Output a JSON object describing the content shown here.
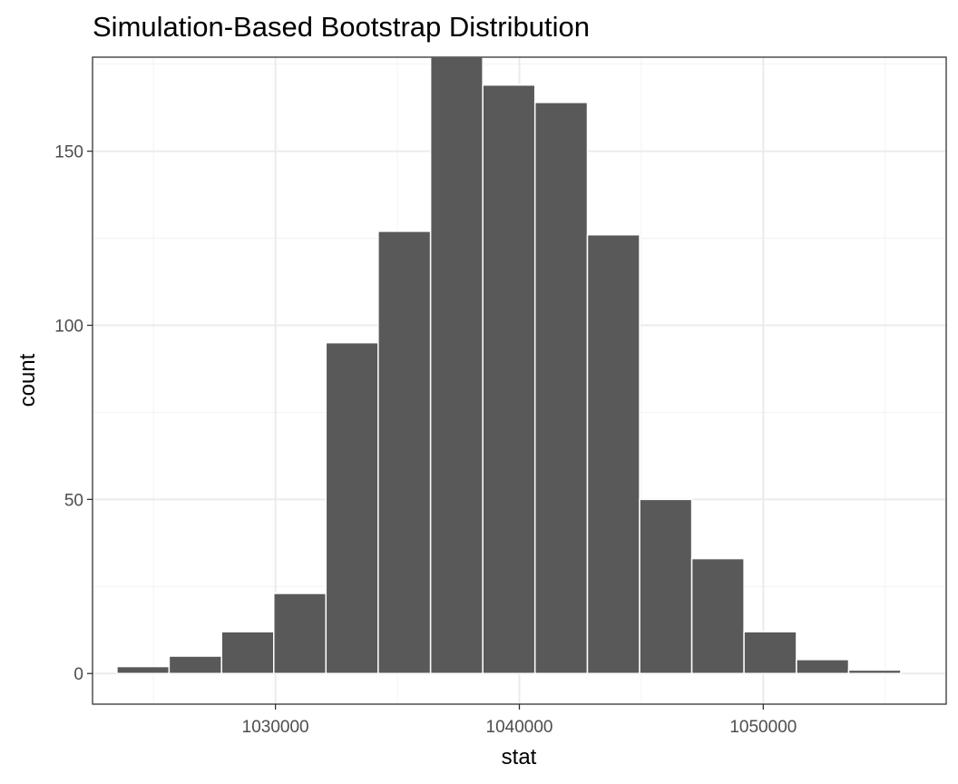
{
  "chart_data": {
    "type": "bar",
    "title": "Simulation-Based Bootstrap Distribution",
    "xlabel": "stat",
    "ylabel": "count",
    "x_ticks": [
      1030000,
      1040000,
      1050000
    ],
    "x_tick_labels": [
      "1030000",
      "1040000",
      "1050000"
    ],
    "y_ticks": [
      0,
      50,
      100,
      150
    ],
    "y_tick_labels": [
      "0",
      "50",
      "100",
      "150"
    ],
    "xlim": [
      1022500,
      1057500
    ],
    "ylim": [
      -8.8,
      177
    ],
    "grid": true,
    "bar_color": "#595959",
    "bar_outline_color": "#ffffff",
    "bins": [
      {
        "x_start": 1023500,
        "x_end": 1025640,
        "value": 2
      },
      {
        "x_start": 1025640,
        "x_end": 1027790,
        "value": 5
      },
      {
        "x_start": 1027790,
        "x_end": 1029930,
        "value": 12
      },
      {
        "x_start": 1029930,
        "x_end": 1032070,
        "value": 23
      },
      {
        "x_start": 1032070,
        "x_end": 1034210,
        "value": 95
      },
      {
        "x_start": 1034210,
        "x_end": 1036360,
        "value": 127
      },
      {
        "x_start": 1036360,
        "x_end": 1038500,
        "value": 177
      },
      {
        "x_start": 1038500,
        "x_end": 1040640,
        "value": 169
      },
      {
        "x_start": 1040640,
        "x_end": 1042790,
        "value": 164
      },
      {
        "x_start": 1042790,
        "x_end": 1044930,
        "value": 126
      },
      {
        "x_start": 1044930,
        "x_end": 1047070,
        "value": 50
      },
      {
        "x_start": 1047070,
        "x_end": 1049210,
        "value": 33
      },
      {
        "x_start": 1049210,
        "x_end": 1051360,
        "value": 12
      },
      {
        "x_start": 1051360,
        "x_end": 1053500,
        "value": 4
      },
      {
        "x_start": 1053500,
        "x_end": 1055640,
        "value": 1
      }
    ]
  }
}
